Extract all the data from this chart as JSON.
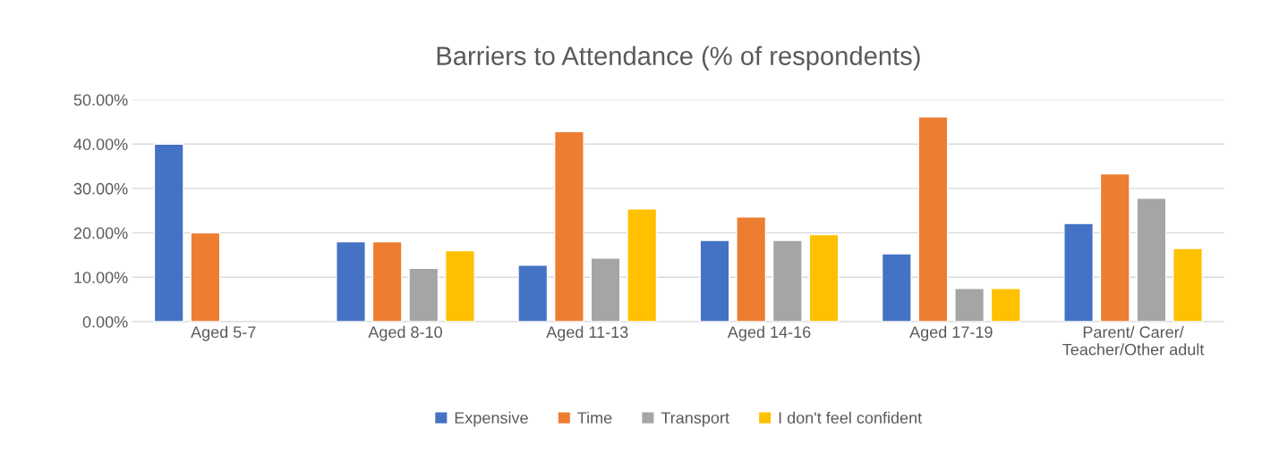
{
  "chart_data": {
    "type": "bar",
    "title": "Barriers to Attendance (% of respondents)",
    "categories": [
      "Aged 5-7",
      "Aged 8-10",
      "Aged 11-13",
      "Aged 14-16",
      "Aged 17-19",
      "Parent/ Carer/\nTeacher/Other adult"
    ],
    "series": [
      {
        "name": "Expensive",
        "color": "#4472c4",
        "values": [
          40,
          18,
          12.7,
          18.3,
          15.3,
          22.1
        ]
      },
      {
        "name": "Time",
        "color": "#ed7d31",
        "values": [
          20,
          18,
          42.8,
          23.6,
          46.1,
          33.3
        ]
      },
      {
        "name": "Transport",
        "color": "#a5a5a5",
        "values": [
          null,
          12,
          14.3,
          18.3,
          7.5,
          27.8
        ]
      },
      {
        "name": "I don't feel confident",
        "color": "#ffc000",
        "values": [
          null,
          16,
          25.4,
          19.6,
          7.5,
          16.5
        ]
      }
    ],
    "ylim": [
      0,
      50
    ],
    "yticks": [
      {
        "value": 0,
        "label": "0.00%"
      },
      {
        "value": 10,
        "label": "10.00%"
      },
      {
        "value": 20,
        "label": "20.00%"
      },
      {
        "value": 30,
        "label": "30.00%"
      },
      {
        "value": 40,
        "label": "40.00%"
      },
      {
        "value": 50,
        "label": "50.00%"
      }
    ],
    "grid": "y",
    "legend": "bottom"
  }
}
